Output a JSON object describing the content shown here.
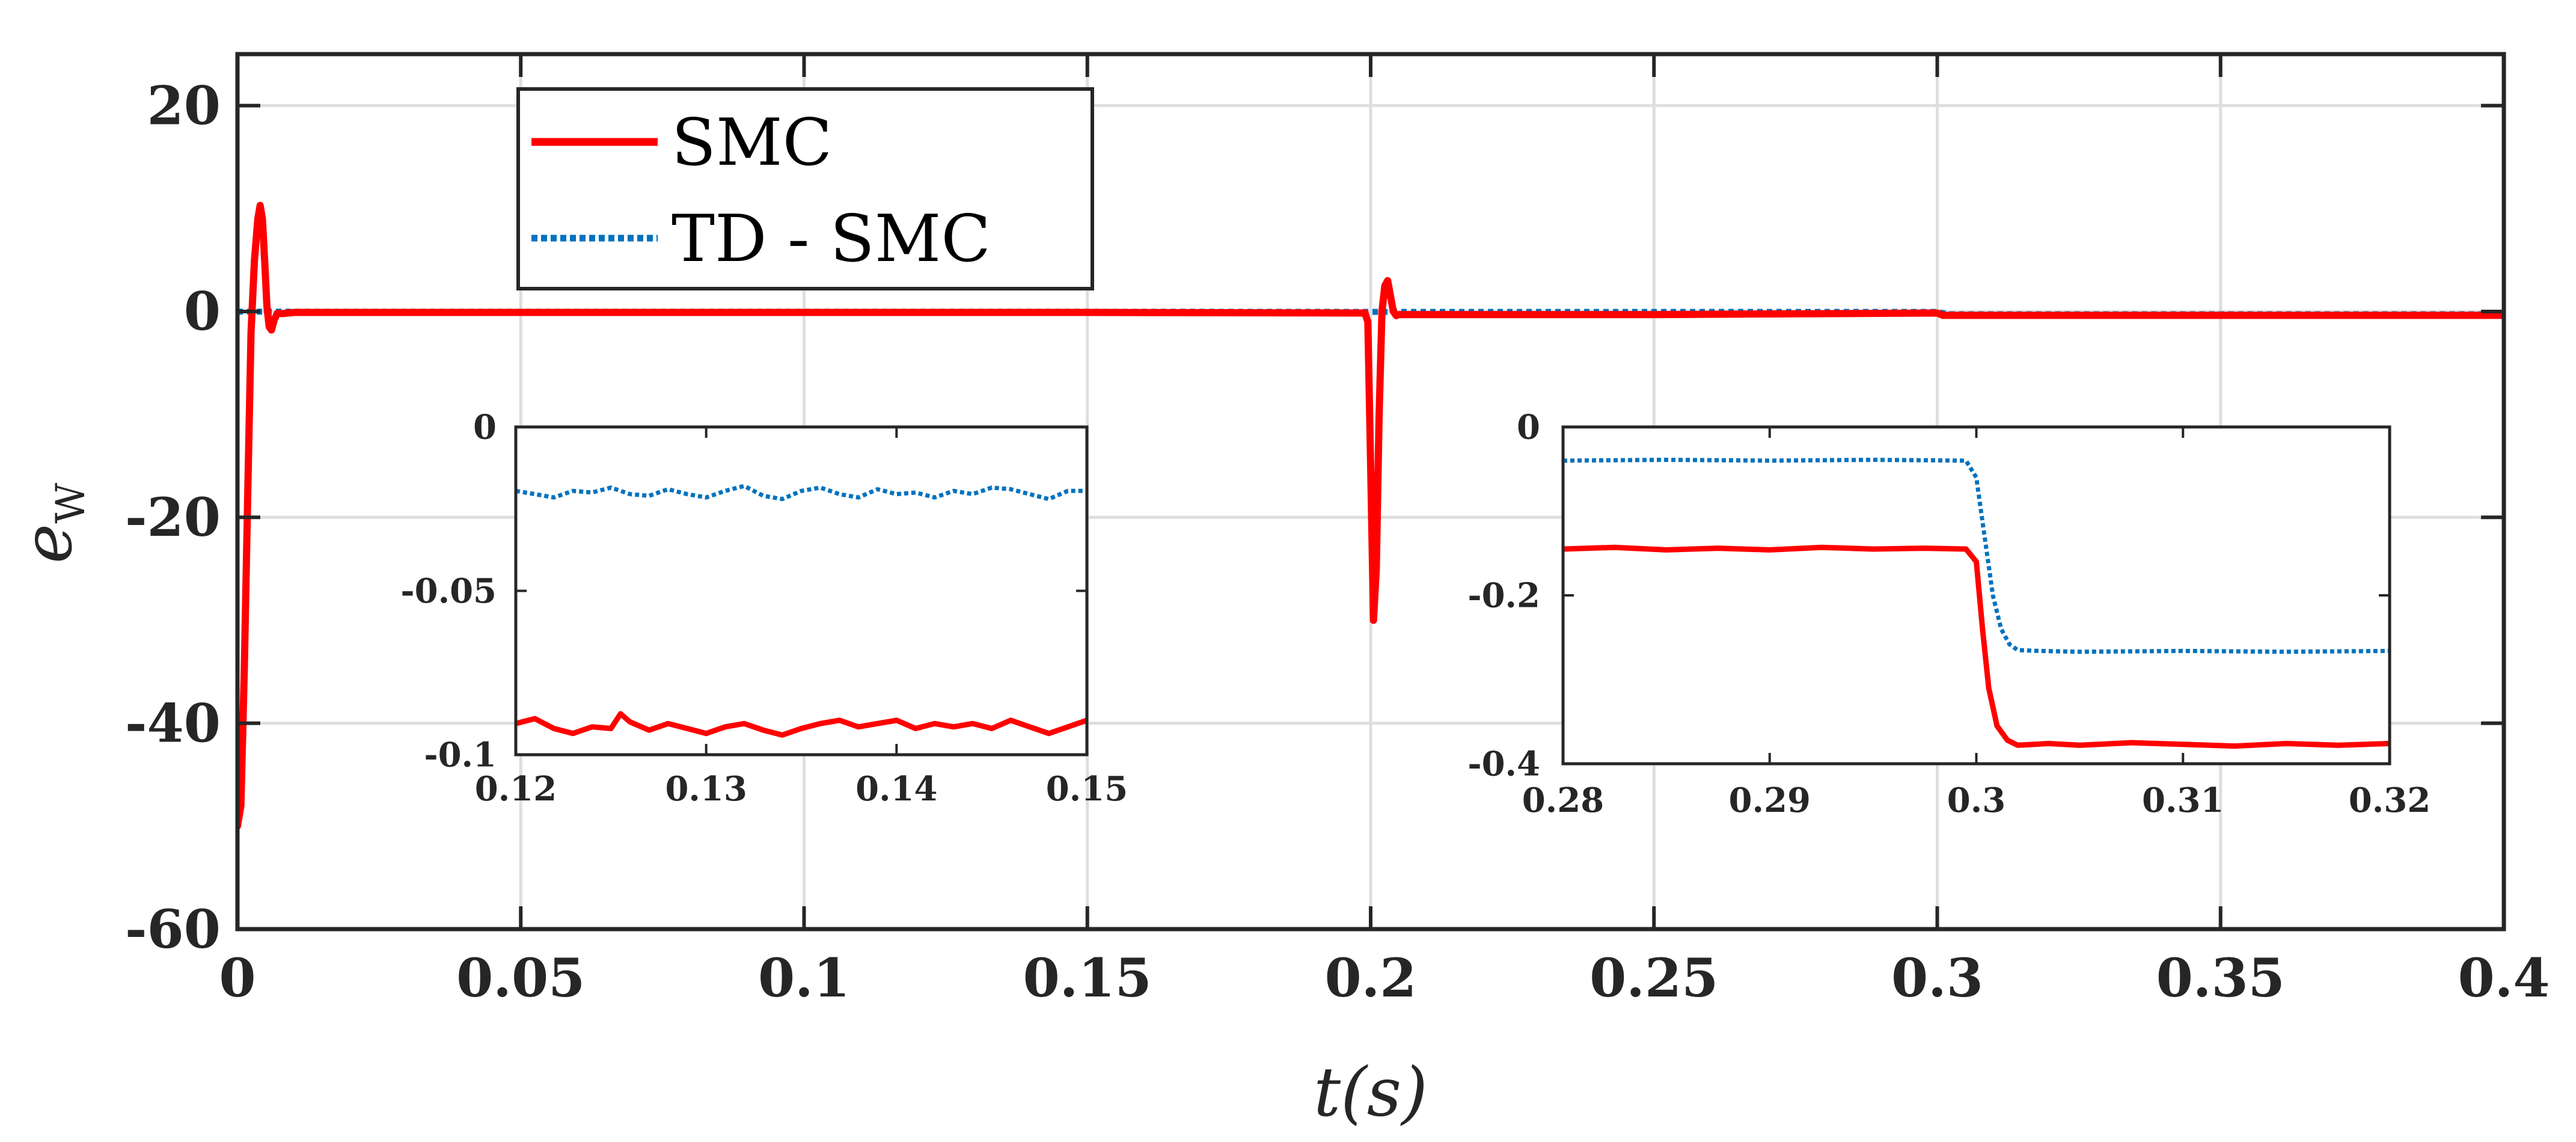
{
  "chart_data": [
    {
      "id": "main",
      "type": "line",
      "title": "",
      "xlabel": "t(s)",
      "ylabel": "e_W",
      "ylabel_main": "e",
      "ylabel_sub": "W",
      "xlim": [
        0,
        0.4
      ],
      "ylim": [
        -60,
        25
      ],
      "xticks": [
        0,
        0.05,
        0.1,
        0.15,
        0.2,
        0.25,
        0.3,
        0.35,
        0.4
      ],
      "xtick_labels": [
        "0",
        "0.05",
        "0.1",
        "0.15",
        "0.2",
        "0.25",
        "0.3",
        "0.35",
        "0.4"
      ],
      "yticks": [
        20,
        0,
        -20,
        -40,
        -60
      ],
      "ytick_labels": [
        "20",
        "0",
        "-20",
        "-40",
        "-60"
      ],
      "grid": true,
      "legend_position": "top-left",
      "series": [
        {
          "name": "SMC",
          "color": "#ff0000",
          "style": "solid",
          "x": [
            0,
            0.0006,
            0.0012,
            0.0018,
            0.0024,
            0.003,
            0.0036,
            0.004,
            0.0044,
            0.0048,
            0.0052,
            0.0056,
            0.006,
            0.0065,
            0.007,
            0.008,
            0.01,
            0.05,
            0.1,
            0.15,
            0.199,
            0.1995,
            0.2,
            0.2005,
            0.201,
            0.2015,
            0.202,
            0.2025,
            0.203,
            0.2035,
            0.204,
            0.2045,
            0.205,
            0.206,
            0.21,
            0.25,
            0.3,
            0.301,
            0.35,
            0.4
          ],
          "y": [
            -50,
            -48,
            -35,
            -18,
            -2,
            5,
            9,
            10.3,
            9,
            5,
            0.5,
            -1.5,
            -1.8,
            -0.8,
            -0.2,
            -0.2,
            -0.09,
            -0.09,
            -0.09,
            -0.09,
            -0.15,
            -1,
            -15,
            -30,
            -25,
            -10,
            0,
            2.5,
            3,
            1.5,
            0,
            -0.4,
            -0.3,
            -0.3,
            -0.3,
            -0.3,
            -0.15,
            -0.38,
            -0.38,
            -0.38
          ]
        },
        {
          "name": "TD - SMC",
          "color": "#0072bd",
          "style": "dotted",
          "x": [
            0,
            0.01,
            0.05,
            0.1,
            0.15,
            0.2,
            0.25,
            0.3,
            0.302,
            0.35,
            0.4
          ],
          "y": [
            -0.02,
            -0.02,
            -0.02,
            -0.02,
            -0.02,
            -0.04,
            -0.04,
            -0.04,
            -0.27,
            -0.27,
            -0.27
          ]
        }
      ]
    },
    {
      "id": "inset1",
      "type": "line",
      "title": "",
      "xlabel": "",
      "ylabel": "",
      "xlim": [
        0.12,
        0.15
      ],
      "ylim": [
        -0.1,
        0
      ],
      "xticks": [
        0.12,
        0.13,
        0.14,
        0.15
      ],
      "xtick_labels": [
        "0.12",
        "0.13",
        "0.14",
        "0.15"
      ],
      "yticks": [
        0,
        -0.05,
        -0.1
      ],
      "ytick_labels": [
        "0",
        "-0.05",
        "-0.1"
      ],
      "grid": false,
      "series": [
        {
          "name": "SMC",
          "color": "#ff0000",
          "style": "solid",
          "x": [
            0.12,
            0.121,
            0.122,
            0.123,
            0.124,
            0.125,
            0.1255,
            0.126,
            0.127,
            0.128,
            0.129,
            0.13,
            0.131,
            0.132,
            0.133,
            0.134,
            0.135,
            0.136,
            0.137,
            0.138,
            0.139,
            0.14,
            0.141,
            0.142,
            0.143,
            0.144,
            0.145,
            0.146,
            0.147,
            0.148,
            0.149,
            0.15
          ],
          "y": [
            -0.0905,
            -0.089,
            -0.092,
            -0.0935,
            -0.0915,
            -0.092,
            -0.0875,
            -0.09,
            -0.0925,
            -0.0905,
            -0.092,
            -0.0935,
            -0.0915,
            -0.0905,
            -0.0925,
            -0.094,
            -0.092,
            -0.0905,
            -0.0895,
            -0.0915,
            -0.0905,
            -0.0895,
            -0.092,
            -0.0905,
            -0.0915,
            -0.0905,
            -0.092,
            -0.0895,
            -0.0915,
            -0.0935,
            -0.0915,
            -0.0895
          ]
        },
        {
          "name": "TD - SMC",
          "color": "#0072bd",
          "style": "dotted",
          "x": [
            0.12,
            0.121,
            0.122,
            0.123,
            0.124,
            0.125,
            0.126,
            0.127,
            0.128,
            0.129,
            0.13,
            0.131,
            0.132,
            0.133,
            0.134,
            0.135,
            0.136,
            0.137,
            0.138,
            0.139,
            0.14,
            0.141,
            0.142,
            0.143,
            0.144,
            0.145,
            0.146,
            0.147,
            0.148,
            0.149,
            0.15
          ],
          "y": [
            -0.0195,
            -0.0205,
            -0.0215,
            -0.0195,
            -0.02,
            -0.0185,
            -0.0205,
            -0.021,
            -0.019,
            -0.0205,
            -0.0215,
            -0.0195,
            -0.018,
            -0.021,
            -0.022,
            -0.0195,
            -0.0185,
            -0.0205,
            -0.0215,
            -0.019,
            -0.0205,
            -0.02,
            -0.0215,
            -0.0195,
            -0.0205,
            -0.0185,
            -0.019,
            -0.0205,
            -0.022,
            -0.0195,
            -0.0195
          ]
        }
      ]
    },
    {
      "id": "inset2",
      "type": "line",
      "title": "",
      "xlabel": "",
      "ylabel": "",
      "xlim": [
        0.28,
        0.32
      ],
      "ylim": [
        -0.4,
        0
      ],
      "xticks": [
        0.28,
        0.29,
        0.3,
        0.31,
        0.32
      ],
      "xtick_labels": [
        "0.28",
        "0.29",
        "0.3",
        "0.31",
        "0.32"
      ],
      "yticks": [
        0,
        -0.2,
        -0.4
      ],
      "ytick_labels": [
        "0",
        "-0.2",
        "-0.4"
      ],
      "grid": false,
      "series": [
        {
          "name": "SMC",
          "color": "#ff0000",
          "style": "solid",
          "x": [
            0.28,
            0.2825,
            0.285,
            0.2875,
            0.29,
            0.2925,
            0.295,
            0.2975,
            0.2995,
            0.3,
            0.3003,
            0.3006,
            0.301,
            0.3015,
            0.302,
            0.3035,
            0.305,
            0.3075,
            0.31,
            0.3125,
            0.315,
            0.3175,
            0.32
          ],
          "y": [
            -0.145,
            -0.143,
            -0.146,
            -0.144,
            -0.146,
            -0.143,
            -0.145,
            -0.144,
            -0.145,
            -0.16,
            -0.24,
            -0.31,
            -0.355,
            -0.372,
            -0.378,
            -0.376,
            -0.378,
            -0.375,
            -0.377,
            -0.379,
            -0.376,
            -0.378,
            -0.376
          ]
        },
        {
          "name": "TD - SMC",
          "color": "#0072bd",
          "style": "dotted",
          "x": [
            0.28,
            0.285,
            0.29,
            0.295,
            0.2995,
            0.3,
            0.3004,
            0.3008,
            0.3012,
            0.3016,
            0.302,
            0.303,
            0.305,
            0.31,
            0.315,
            0.32
          ],
          "y": [
            -0.04,
            -0.039,
            -0.04,
            -0.039,
            -0.04,
            -0.06,
            -0.13,
            -0.2,
            -0.24,
            -0.258,
            -0.265,
            -0.266,
            -0.267,
            -0.266,
            -0.267,
            -0.266
          ]
        }
      ]
    }
  ]
}
